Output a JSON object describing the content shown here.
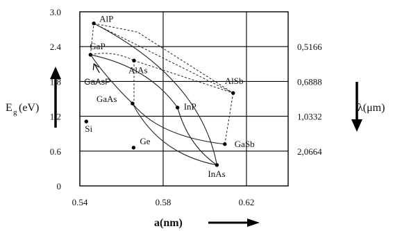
{
  "chart_data": {
    "type": "scatter",
    "x": {
      "label": "a(nm)",
      "ticks": [
        0.54,
        0.58,
        0.62
      ],
      "tick_labels": [
        "0.54",
        "0.58",
        "0.62"
      ],
      "range": [
        0.54,
        0.64
      ]
    },
    "y_left": {
      "label_main": "E",
      "label_sub": "g",
      "label_unit": "(eV)",
      "ticks": [
        0,
        0.6,
        1.2,
        1.8,
        2.4,
        3.0
      ],
      "tick_labels": [
        "0",
        "0.6",
        "1.2",
        "1.8",
        "2.4",
        "3.0"
      ],
      "range": [
        0,
        3.0
      ]
    },
    "y_right": {
      "label": "λ(μm)",
      "tick_positions_eV": [
        0.6,
        1.2,
        1.8,
        2.4
      ],
      "tick_labels": [
        "2,0664",
        "1,0332",
        "0,6888",
        "0,5166"
      ]
    },
    "grid": true,
    "points": [
      {
        "name": "AlP",
        "a": 0.5467,
        "eg": 2.8
      },
      {
        "name": "GaP",
        "a": 0.5451,
        "eg": 2.26
      },
      {
        "name": "AlAs",
        "a": 0.566,
        "eg": 2.16
      },
      {
        "name": "AlSb",
        "a": 0.6136,
        "eg": 1.6
      },
      {
        "name": "InP",
        "a": 0.5869,
        "eg": 1.35
      },
      {
        "name": "GaAs",
        "a": 0.5653,
        "eg": 1.42
      },
      {
        "name": "Si",
        "a": 0.5431,
        "eg": 1.11
      },
      {
        "name": "Ge",
        "a": 0.5658,
        "eg": 0.66
      },
      {
        "name": "GaSb",
        "a": 0.6096,
        "eg": 0.72
      },
      {
        "name": "InAs",
        "a": 0.6058,
        "eg": 0.36
      }
    ],
    "annotations": [
      {
        "text": "GaAsP"
      }
    ]
  }
}
